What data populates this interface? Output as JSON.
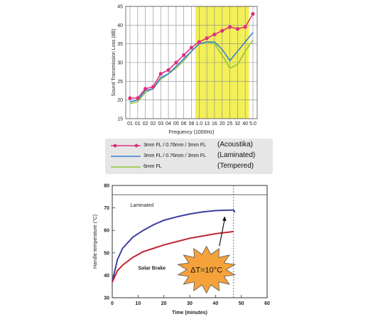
{
  "chart_data": [
    {
      "type": "line",
      "title": "",
      "xlabel": "Frequency  (1000Hz)",
      "ylabel": "Sound Transmission Loss (dB)",
      "categories": [
        "01",
        "01",
        "02",
        "02",
        "03",
        "04",
        "05",
        "06",
        "08",
        "1.0",
        "13",
        "16",
        "20",
        "25",
        "32",
        "40",
        "5.0"
      ],
      "ylim": [
        15,
        45
      ],
      "yticks": [
        "15",
        "20",
        "25",
        "30",
        "35",
        "40",
        "45"
      ],
      "grid": true,
      "highlight_band": {
        "from_category": "1.0",
        "to_category": "40",
        "color": "#f2ef58"
      },
      "series": [
        {
          "name": "3mm FL / 0.76mm  / 3mm FL",
          "label": "(Acoustika)",
          "color": "#e0307c",
          "marker": "circle",
          "values": [
            20.5,
            20.5,
            23,
            23.5,
            27,
            28,
            30,
            32,
            34,
            35.5,
            36.5,
            37.5,
            38.5,
            39.5,
            39,
            39.5,
            43
          ]
        },
        {
          "name": "3mm FL / 0.76mm  / 3mm FL",
          "label": "(Laminated)",
          "color": "#3a7fcf",
          "marker": "none",
          "values": [
            19.5,
            20,
            22.5,
            23,
            26,
            27,
            29,
            31,
            33,
            35,
            35.5,
            35.5,
            33.5,
            30.5,
            33,
            35.5,
            38
          ]
        },
        {
          "name": "6mm FL",
          "label": "(Tempered)",
          "color": "#8cc63f",
          "marker": "none",
          "values": [
            19,
            19.5,
            22,
            23,
            25.5,
            27,
            28.5,
            30.5,
            33,
            35,
            35.5,
            35,
            32,
            28.5,
            29.5,
            33,
            36
          ]
        }
      ]
    },
    {
      "type": "line",
      "title": "",
      "xlabel": "Time (minutes)",
      "ylabel": "Handle temperature (°C)",
      "xlim": [
        0,
        60
      ],
      "ylim": [
        30,
        80
      ],
      "xticks": [
        "0",
        "10",
        "20",
        "30",
        "40",
        "50",
        "60"
      ],
      "yticks": [
        "30",
        "40",
        "50",
        "60",
        "70",
        "80"
      ],
      "marker_line_x": 47,
      "series": [
        {
          "name": "Laminated",
          "color": "#3d3fa5",
          "x": [
            0,
            2,
            4,
            8,
            12,
            16,
            20,
            25,
            30,
            35,
            40,
            45,
            47,
            47.5
          ],
          "y": [
            37,
            47,
            52,
            57,
            60,
            62.5,
            64.5,
            66,
            67.3,
            68.2,
            68.8,
            69,
            69,
            68
          ]
        },
        {
          "name": "Solar Brake",
          "color": "#c02535",
          "x": [
            0,
            2,
            4,
            8,
            12,
            16,
            20,
            25,
            30,
            35,
            40,
            45,
            47
          ],
          "y": [
            37,
            42,
            44.5,
            48,
            50.5,
            52,
            53.5,
            55,
            56.5,
            57.5,
            58.5,
            59.2,
            59.5
          ]
        }
      ],
      "annotation": {
        "text": "ΔT=10°C",
        "color": "#f5a23a"
      }
    }
  ]
}
